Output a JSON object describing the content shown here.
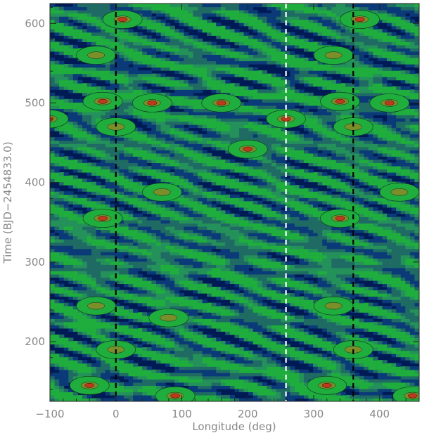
{
  "chart_data": {
    "type": "heatmap",
    "title": "",
    "xlabel": "Longitude (deg)",
    "ylabel": "Time (BJD−2454833.0)",
    "xlim": [
      -100,
      460
    ],
    "ylim": [
      125,
      625
    ],
    "x_ticks": [
      -100,
      0,
      100,
      200,
      300,
      400
    ],
    "x_tick_labels": [
      "−100",
      "0",
      "100",
      "200",
      "300",
      "400"
    ],
    "y_ticks": [
      200,
      300,
      400,
      500,
      600
    ],
    "y_tick_labels": [
      "200",
      "300",
      "400",
      "500",
      "600"
    ],
    "vertical_lines": [
      {
        "x": 0,
        "style": "dashed",
        "color": "#000000"
      },
      {
        "x": 258,
        "style": "dashed",
        "color": "#ffffff"
      },
      {
        "x": 360,
        "style": "dashed",
        "color": "#000000"
      }
    ],
    "contour_levels": [
      "0.2",
      "0.3",
      "0.4",
      "0.5",
      "0.6",
      "0.7"
    ],
    "level_colors": [
      "#001a55",
      "#0a3a78",
      "#1f6b64",
      "#24915a",
      "#1fad3d",
      "#7a8f2a",
      "#c0391f"
    ],
    "periodic_in_longitude": 360,
    "features": [
      {
        "t": 145,
        "lon": -40,
        "level": 6
      },
      {
        "t": 132,
        "lon": 90,
        "level": 6
      },
      {
        "t": 145,
        "lon": 320,
        "level": 6
      },
      {
        "t": 132,
        "lon": 450,
        "level": 6
      },
      {
        "t": 230,
        "lon": 80,
        "level": 5
      },
      {
        "t": 245,
        "lon": -30,
        "level": 5
      },
      {
        "t": 245,
        "lon": 330,
        "level": 5
      },
      {
        "t": 190,
        "lon": 0,
        "level": 5
      },
      {
        "t": 190,
        "lon": 360,
        "level": 5
      },
      {
        "t": 355,
        "lon": -20,
        "level": 6
      },
      {
        "t": 355,
        "lon": 340,
        "level": 6
      },
      {
        "t": 388,
        "lon": 70,
        "level": 5
      },
      {
        "t": 388,
        "lon": 430,
        "level": 5
      },
      {
        "t": 442,
        "lon": 200,
        "level": 6
      },
      {
        "t": 480,
        "lon": 258,
        "level": 6
      },
      {
        "t": 480,
        "lon": -102,
        "level": 6
      },
      {
        "t": 500,
        "lon": 160,
        "level": 6
      },
      {
        "t": 500,
        "lon": 55,
        "level": 6
      },
      {
        "t": 500,
        "lon": 415,
        "level": 6
      },
      {
        "t": 502,
        "lon": -20,
        "level": 6
      },
      {
        "t": 502,
        "lon": 340,
        "level": 6
      },
      {
        "t": 605,
        "lon": 10,
        "level": 6
      },
      {
        "t": 605,
        "lon": 370,
        "level": 6
      },
      {
        "t": 560,
        "lon": -30,
        "level": 5
      },
      {
        "t": 560,
        "lon": 330,
        "level": 5
      },
      {
        "t": 470,
        "lon": 0,
        "level": 5
      },
      {
        "t": 470,
        "lon": 360,
        "level": 5
      }
    ]
  }
}
